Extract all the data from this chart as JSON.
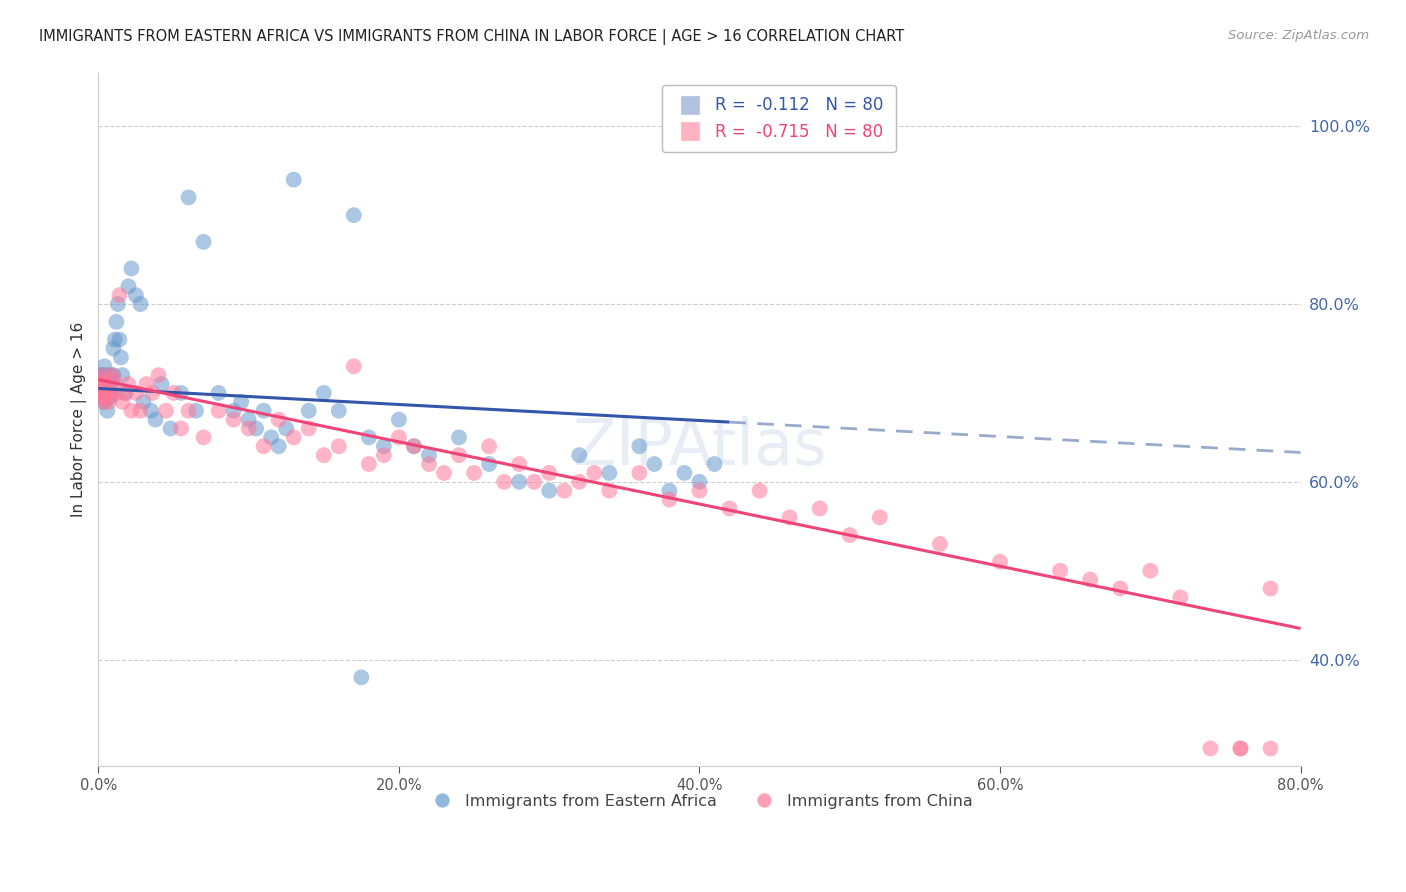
{
  "title": "IMMIGRANTS FROM EASTERN AFRICA VS IMMIGRANTS FROM CHINA IN LABOR FORCE | AGE > 16 CORRELATION CHART",
  "source": "Source: ZipAtlas.com",
  "ylabel": "In Labor Force | Age > 16",
  "xlim": [
    0.0,
    0.8
  ],
  "ylim": [
    0.28,
    1.06
  ],
  "series1_name": "Immigrants from Eastern Africa",
  "series1_color": "#6699CC",
  "series1_R": "-0.112",
  "series1_N": "80",
  "series2_name": "Immigrants from China",
  "series2_color": "#FF7799",
  "series2_R": "-0.715",
  "series2_N": "80",
  "watermark": "ZIPAtlas",
  "background_color": "#ffffff",
  "grid_color": "#cccccc",
  "axis_label_color": "#4466AA",
  "trend_ea_solid_color": "#3355AA",
  "trend_ea_dashed_color": "#99AACC",
  "trend_cn_color": "#EE4477",
  "ea_trend_x0": 0.0,
  "ea_trend_y0": 0.705,
  "ea_trend_x1": 0.8,
  "ea_trend_y1": 0.633,
  "ea_trend_split": 0.42,
  "cn_trend_x0": 0.0,
  "cn_trend_y0": 0.715,
  "cn_trend_x1": 0.8,
  "cn_trend_y1": 0.435,
  "y_ticks": [
    0.4,
    0.6,
    0.8,
    1.0
  ],
  "x_ticks": [
    0.0,
    0.2,
    0.4,
    0.6,
    0.8
  ],
  "scatter_alpha": 0.55,
  "scatter_size": 130,
  "ea_x": [
    0.001,
    0.001,
    0.001,
    0.002,
    0.002,
    0.002,
    0.002,
    0.003,
    0.003,
    0.003,
    0.003,
    0.004,
    0.004,
    0.004,
    0.005,
    0.005,
    0.005,
    0.006,
    0.006,
    0.006,
    0.007,
    0.007,
    0.008,
    0.008,
    0.009,
    0.009,
    0.01,
    0.01,
    0.011,
    0.012,
    0.013,
    0.014,
    0.015,
    0.016,
    0.018,
    0.02,
    0.022,
    0.025,
    0.028,
    0.03,
    0.035,
    0.038,
    0.042,
    0.048,
    0.055,
    0.06,
    0.065,
    0.07,
    0.08,
    0.09,
    0.095,
    0.1,
    0.105,
    0.11,
    0.115,
    0.12,
    0.125,
    0.13,
    0.14,
    0.15,
    0.16,
    0.17,
    0.175,
    0.18,
    0.19,
    0.2,
    0.21,
    0.22,
    0.24,
    0.26,
    0.28,
    0.3,
    0.32,
    0.34,
    0.36,
    0.37,
    0.38,
    0.39,
    0.4,
    0.41
  ],
  "ea_y": [
    0.7,
    0.71,
    0.72,
    0.695,
    0.715,
    0.705,
    0.72,
    0.7,
    0.71,
    0.72,
    0.69,
    0.715,
    0.705,
    0.73,
    0.71,
    0.7,
    0.72,
    0.695,
    0.71,
    0.68,
    0.715,
    0.7,
    0.72,
    0.695,
    0.71,
    0.7,
    0.72,
    0.75,
    0.76,
    0.78,
    0.8,
    0.76,
    0.74,
    0.72,
    0.7,
    0.82,
    0.84,
    0.81,
    0.8,
    0.69,
    0.68,
    0.67,
    0.71,
    0.66,
    0.7,
    0.92,
    0.68,
    0.87,
    0.7,
    0.68,
    0.69,
    0.67,
    0.66,
    0.68,
    0.65,
    0.64,
    0.66,
    0.94,
    0.68,
    0.7,
    0.68,
    0.9,
    0.38,
    0.65,
    0.64,
    0.67,
    0.64,
    0.63,
    0.65,
    0.62,
    0.6,
    0.59,
    0.63,
    0.61,
    0.64,
    0.62,
    0.59,
    0.61,
    0.6,
    0.62
  ],
  "cn_x": [
    0.001,
    0.001,
    0.002,
    0.002,
    0.003,
    0.003,
    0.004,
    0.004,
    0.005,
    0.005,
    0.006,
    0.006,
    0.007,
    0.008,
    0.009,
    0.01,
    0.012,
    0.014,
    0.016,
    0.018,
    0.02,
    0.022,
    0.025,
    0.028,
    0.032,
    0.036,
    0.04,
    0.045,
    0.05,
    0.055,
    0.06,
    0.07,
    0.08,
    0.09,
    0.1,
    0.11,
    0.12,
    0.13,
    0.14,
    0.15,
    0.16,
    0.17,
    0.18,
    0.19,
    0.2,
    0.21,
    0.22,
    0.23,
    0.24,
    0.25,
    0.26,
    0.27,
    0.28,
    0.29,
    0.3,
    0.31,
    0.32,
    0.33,
    0.34,
    0.36,
    0.38,
    0.4,
    0.42,
    0.44,
    0.46,
    0.48,
    0.5,
    0.52,
    0.56,
    0.6,
    0.64,
    0.66,
    0.68,
    0.7,
    0.72,
    0.74,
    0.76,
    0.78,
    0.76,
    0.78
  ],
  "cn_y": [
    0.7,
    0.715,
    0.695,
    0.71,
    0.7,
    0.72,
    0.705,
    0.69,
    0.71,
    0.695,
    0.7,
    0.71,
    0.69,
    0.7,
    0.72,
    0.715,
    0.7,
    0.81,
    0.69,
    0.7,
    0.71,
    0.68,
    0.7,
    0.68,
    0.71,
    0.7,
    0.72,
    0.68,
    0.7,
    0.66,
    0.68,
    0.65,
    0.68,
    0.67,
    0.66,
    0.64,
    0.67,
    0.65,
    0.66,
    0.63,
    0.64,
    0.73,
    0.62,
    0.63,
    0.65,
    0.64,
    0.62,
    0.61,
    0.63,
    0.61,
    0.64,
    0.6,
    0.62,
    0.6,
    0.61,
    0.59,
    0.6,
    0.61,
    0.59,
    0.61,
    0.58,
    0.59,
    0.57,
    0.59,
    0.56,
    0.57,
    0.54,
    0.56,
    0.53,
    0.51,
    0.5,
    0.49,
    0.48,
    0.5,
    0.47,
    0.3,
    0.3,
    0.48,
    0.3,
    0.3
  ]
}
